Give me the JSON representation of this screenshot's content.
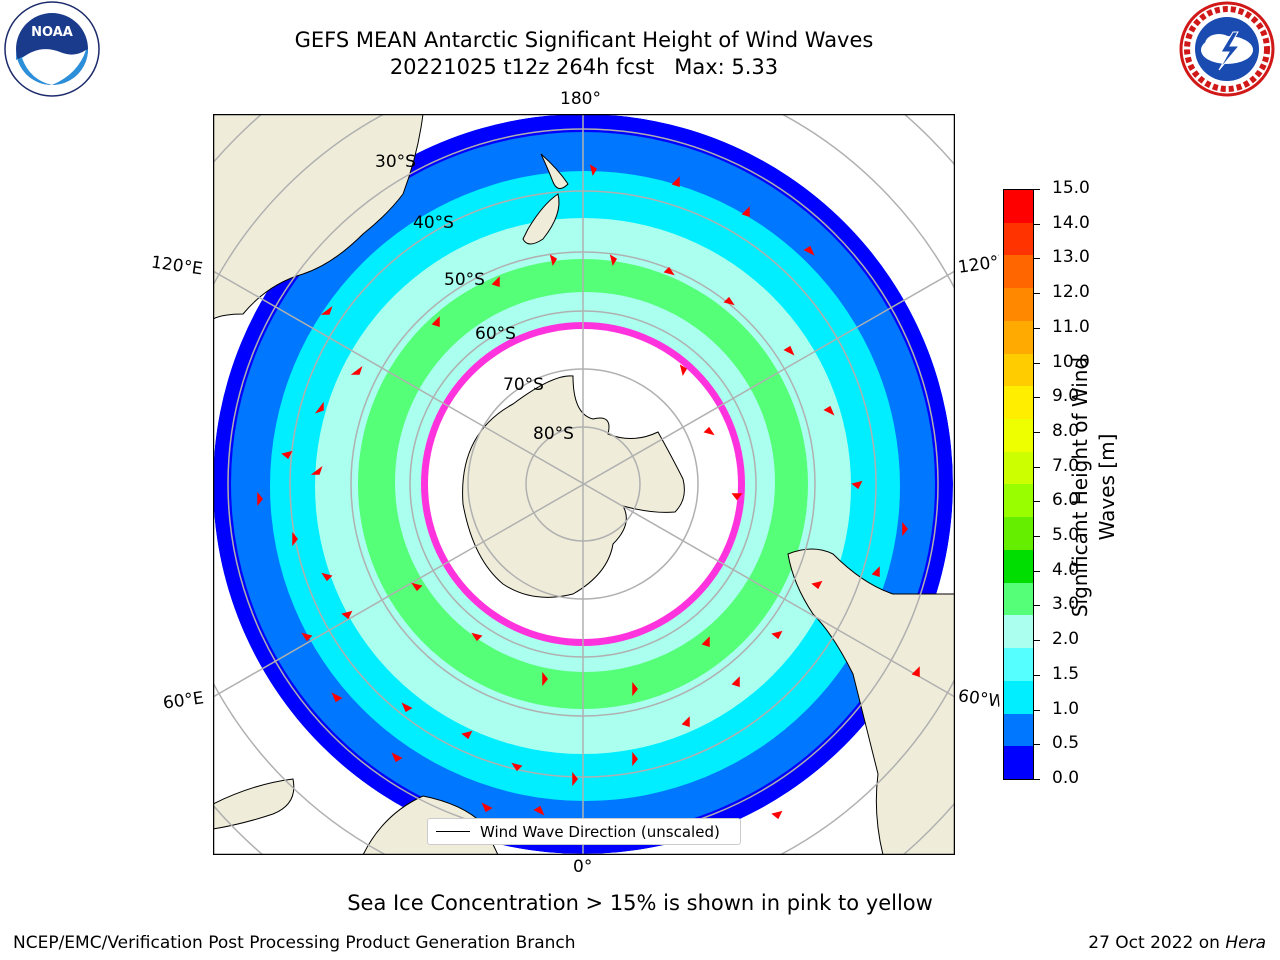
{
  "title": {
    "line1": "GEFS MEAN Antarctic Significant Height of Wind Waves",
    "line2": "20221025 t12z 264h fcst   Max: 5.33"
  },
  "logos": {
    "left": {
      "name": "noaa-logo",
      "text": "NOAA",
      "ring_text": "NATIONAL OCEANIC AND ATMOSPHERIC ADMINISTRATION • U.S. DEPARTMENT OF COMMERCE"
    },
    "right": {
      "name": "nws-logo",
      "ring_text": "NATIONAL WEATHER SERVICE"
    }
  },
  "map": {
    "projection": "south-polar-stereographic",
    "longitude_labels": {
      "top": "180°",
      "bottom": "0°",
      "upper_left": "120°E",
      "upper_right": "120°W",
      "lower_left": "60°E",
      "lower_right": "60°W"
    },
    "latitude_labels": [
      "30°S",
      "40°S",
      "50°S",
      "60°S",
      "70°S",
      "80°S"
    ],
    "legend_label": "Wind Wave Direction (unscaled)",
    "colors": {
      "land": "#efedda",
      "sea_ice": "#ffffff",
      "ice_edge": "#ff33dd",
      "arrows": "#ff0000",
      "graticule": "#b0b0b0"
    }
  },
  "colorbar": {
    "label": "Significant Height of Wind Waves [m]",
    "ticks": [
      "15.0",
      "14.0",
      "13.0",
      "12.0",
      "11.0",
      "10.0",
      "9.0",
      "8.0",
      "7.0",
      "6.0",
      "5.0",
      "4.0",
      "3.0",
      "2.0",
      "1.5",
      "1.0",
      "0.5",
      "0.0"
    ],
    "colors_top_to_bottom": [
      "#ff0000",
      "#ff3300",
      "#ff6600",
      "#ff8800",
      "#ffaa00",
      "#ffcc00",
      "#ffee00",
      "#eeff00",
      "#ccff00",
      "#99ff00",
      "#66ee00",
      "#00dd00",
      "#55ff77",
      "#aaffee",
      "#55ffff",
      "#00eeff",
      "#0077ff",
      "#0000ff"
    ]
  },
  "note": "Sea Ice Concentration > 15% is shown in pink to yellow",
  "footer": {
    "left": "NCEP/EMC/Verification Post Processing Product Generation Branch",
    "date": "27 Oct 2022 on ",
    "machine": "Hera"
  }
}
